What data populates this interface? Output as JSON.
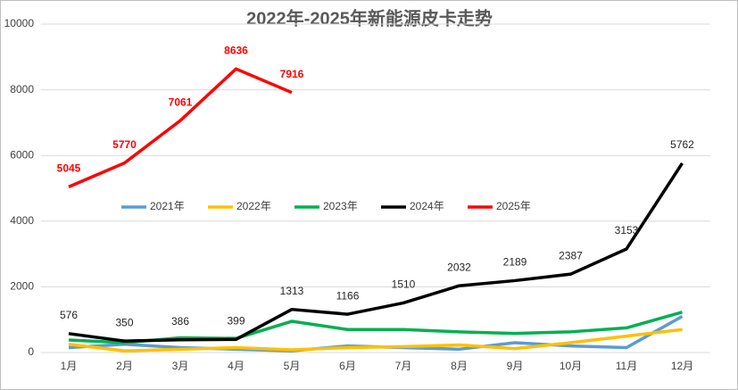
{
  "chart_data": {
    "type": "line",
    "title": "2022年-2025年新能源皮卡走势",
    "categories": [
      "1月",
      "2月",
      "3月",
      "4月",
      "5月",
      "6月",
      "7月",
      "8月",
      "9月",
      "10月",
      "11月",
      "12月"
    ],
    "series": [
      {
        "name": "2021年",
        "color": "#5b9bd5",
        "values": [
          150,
          250,
          150,
          100,
          50,
          200,
          150,
          100,
          300,
          200,
          150,
          1100
        ]
      },
      {
        "name": "2022年",
        "color": "#ffc000",
        "values": [
          250,
          50,
          100,
          150,
          80,
          150,
          180,
          230,
          120,
          300,
          500,
          700
        ]
      },
      {
        "name": "2023年",
        "color": "#00b050",
        "values": [
          380,
          300,
          450,
          430,
          950,
          700,
          700,
          630,
          580,
          630,
          750,
          1230
        ]
      },
      {
        "name": "2024年",
        "color": "#000000",
        "labels": true,
        "values": [
          576,
          350,
          386,
          399,
          1313,
          1166,
          1510,
          2032,
          2189,
          2387,
          3153,
          5762
        ]
      },
      {
        "name": "2025年",
        "color": "#ff0000",
        "labels": true,
        "values": [
          5045,
          5770,
          7061,
          8636,
          7916,
          null,
          null,
          null,
          null,
          null,
          null,
          null
        ]
      }
    ],
    "ylim": [
      0,
      10000
    ],
    "yticks": [
      0,
      2000,
      4000,
      6000,
      8000,
      10000
    ],
    "grid": true
  }
}
